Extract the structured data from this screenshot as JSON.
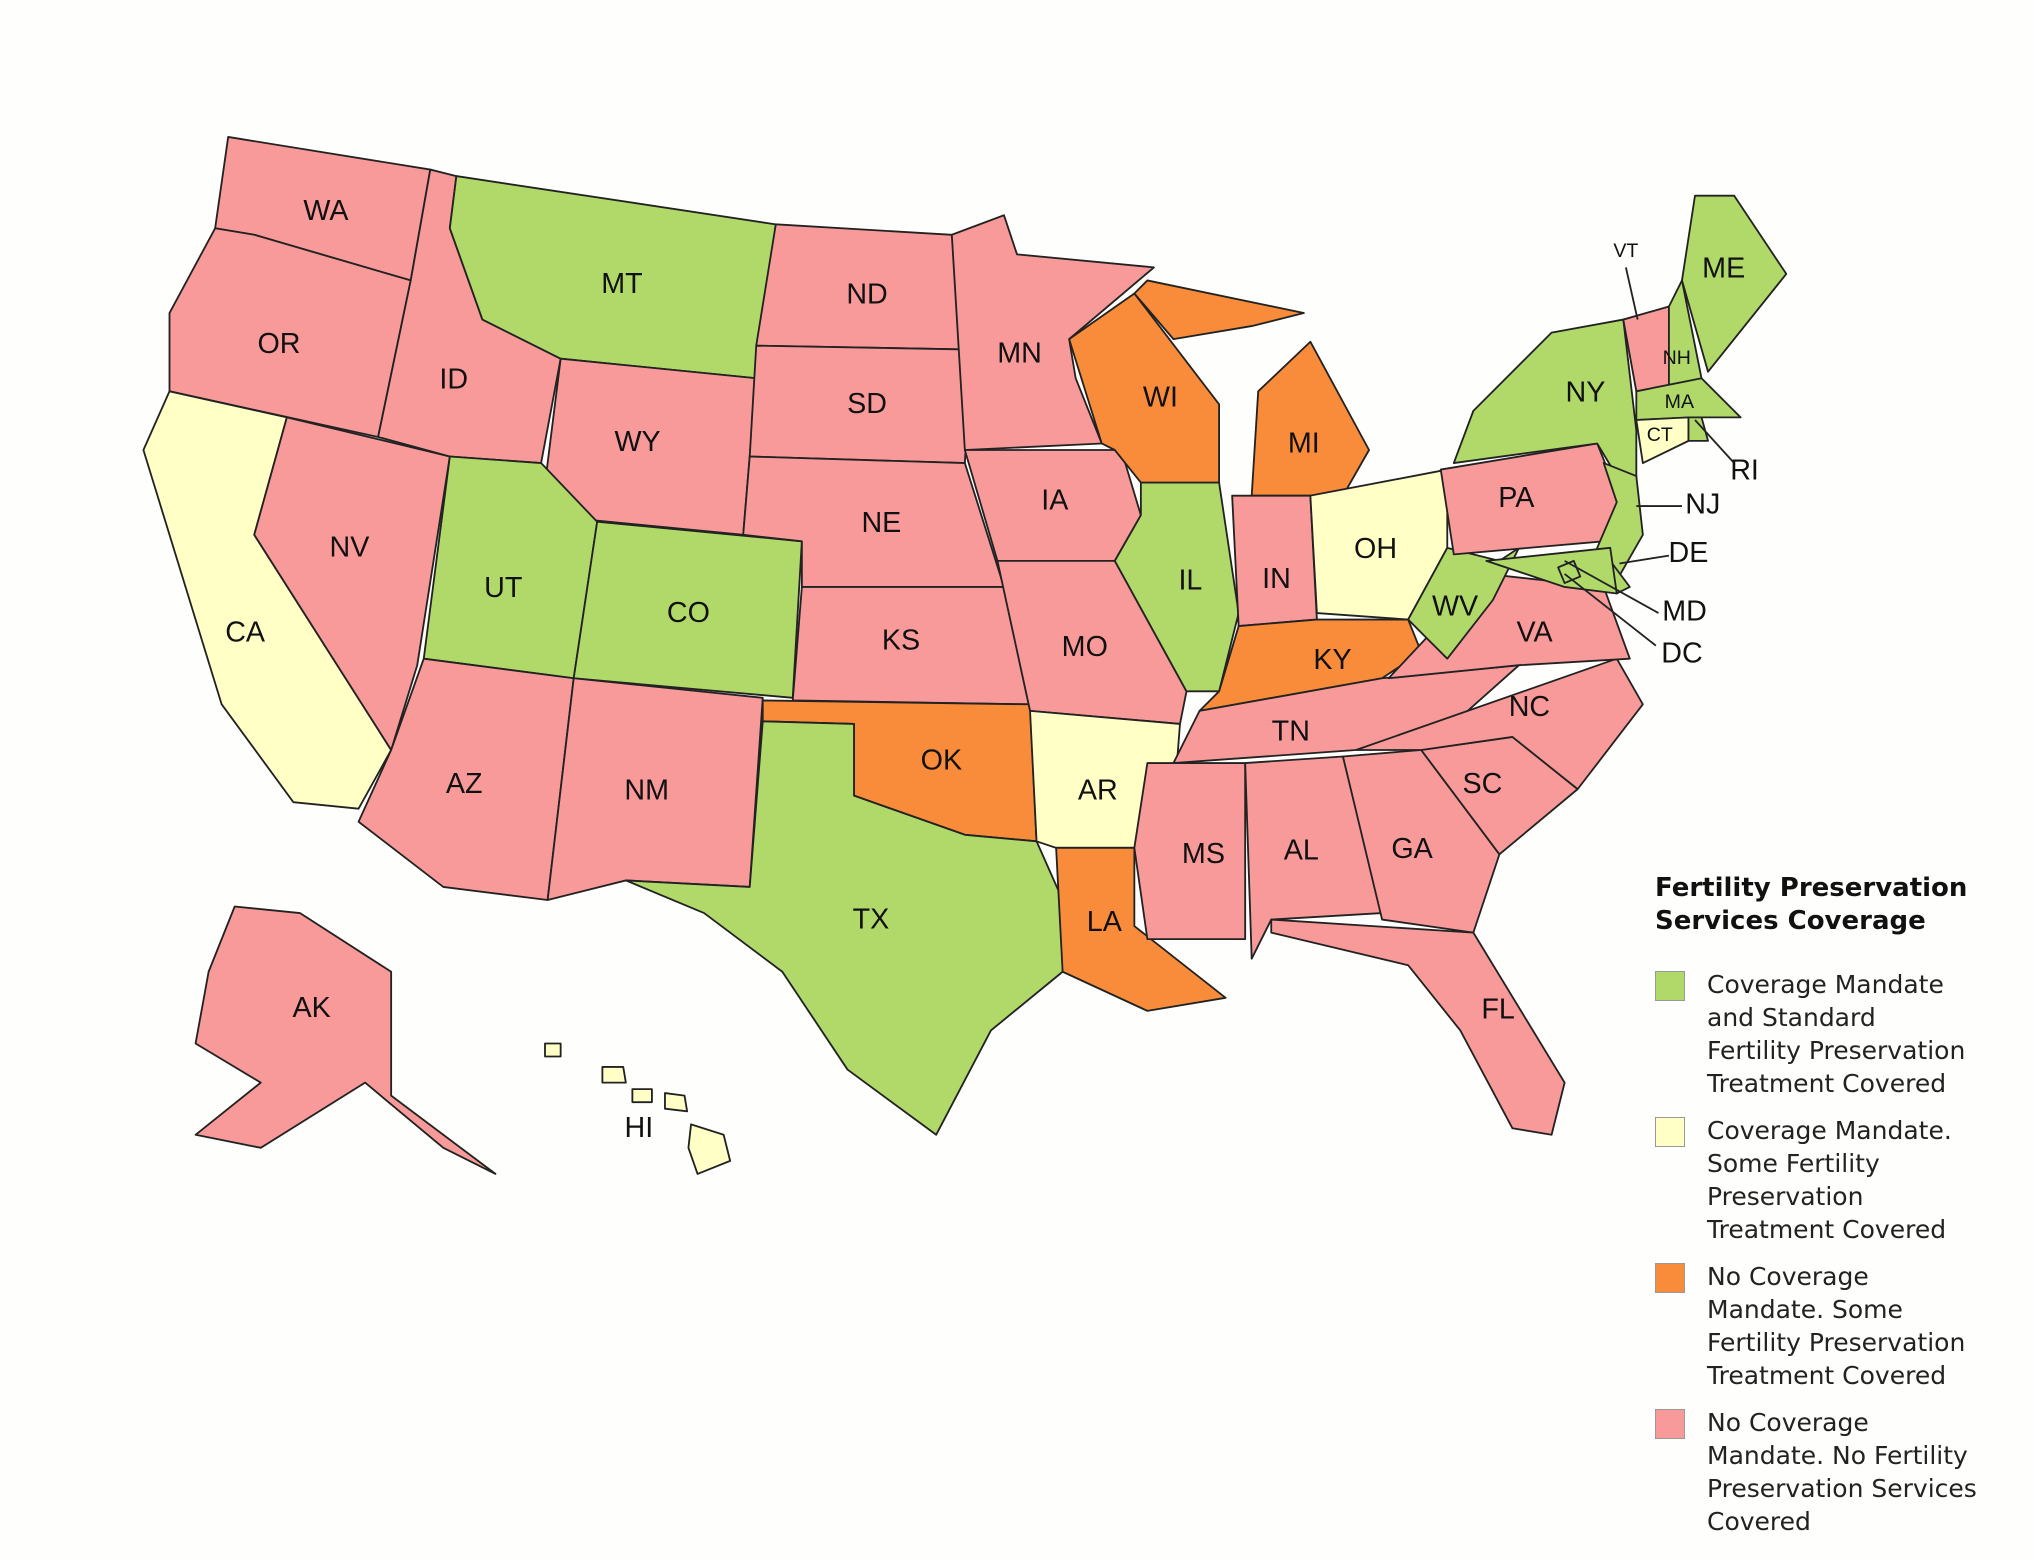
{
  "legend": {
    "title": "Fertility Preservation Services Coverage",
    "categories": [
      {
        "key": "mandate_standard",
        "label": "Coverage Mandate and Standard Fertility Preservation Treatment Covered",
        "color": "#b0d96a"
      },
      {
        "key": "mandate_some",
        "label": "Coverage Mandate. Some Fertility Preservation Treatment Covered",
        "color": "#ffffc6"
      },
      {
        "key": "no_mandate_some",
        "label": "No Coverage Mandate. Some Fertility Preservation Treatment Covered",
        "color": "#f98c3a"
      },
      {
        "key": "no_mandate_none",
        "label": "No Coverage Mandate. No Fertility Preservation Services Covered",
        "color": "#f99a9a"
      }
    ]
  },
  "states": {
    "WA": "no_mandate_none",
    "OR": "no_mandate_none",
    "CA": "mandate_some",
    "NV": "no_mandate_none",
    "ID": "no_mandate_none",
    "MT": "mandate_standard",
    "WY": "no_mandate_none",
    "UT": "mandate_standard",
    "CO": "mandate_standard",
    "AZ": "no_mandate_none",
    "NM": "no_mandate_none",
    "ND": "no_mandate_none",
    "SD": "no_mandate_none",
    "NE": "no_mandate_none",
    "KS": "no_mandate_none",
    "OK": "no_mandate_some",
    "TX": "mandate_standard",
    "MN": "no_mandate_none",
    "IA": "no_mandate_none",
    "MO": "no_mandate_none",
    "AR": "mandate_some",
    "LA": "no_mandate_some",
    "WI": "no_mandate_some",
    "IL": "mandate_standard",
    "MI": "no_mandate_some",
    "IN": "no_mandate_none",
    "OH": "mandate_some",
    "KY": "no_mandate_some",
    "TN": "no_mandate_none",
    "MS": "no_mandate_none",
    "AL": "no_mandate_none",
    "GA": "no_mandate_none",
    "FL": "no_mandate_none",
    "SC": "no_mandate_none",
    "NC": "no_mandate_none",
    "VA": "no_mandate_none",
    "WV": "mandate_standard",
    "PA": "no_mandate_none",
    "NY": "mandate_standard",
    "VT": "no_mandate_none",
    "NH": "mandate_standard",
    "ME": "mandate_standard",
    "MA": "mandate_standard",
    "CT": "mandate_some",
    "RI": "mandate_standard",
    "NJ": "mandate_standard",
    "DE": "mandate_standard",
    "MD": "mandate_standard",
    "DC": "mandate_standard",
    "AK": "no_mandate_none",
    "HI": "mandate_some"
  }
}
